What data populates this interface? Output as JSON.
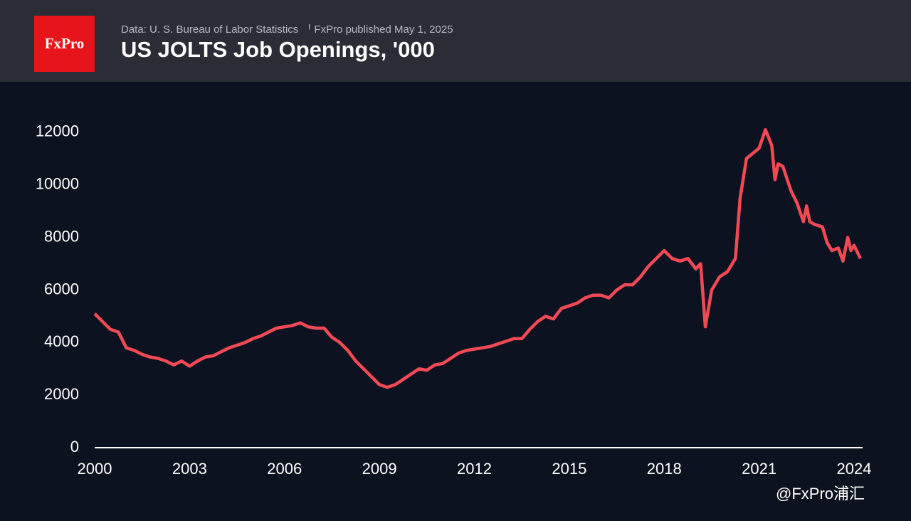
{
  "logo": "FxPro",
  "watermark": "@FxPro浦汇",
  "chart_data": {
    "type": "line",
    "title": "US JOLTS Job Openings, '000",
    "subtitle": "Data: U. S. Bureau of Labor Statistics  ᅵ FxPro published May 1, 2025",
    "xlim": [
      2000,
      2024.27
    ],
    "xticks": [
      2000,
      2003,
      2006,
      2009,
      2012,
      2015,
      2018,
      2021,
      2024
    ],
    "ylim": [
      0,
      13000
    ],
    "yticks": [
      0,
      2000,
      4000,
      6000,
      8000,
      10000,
      12000
    ],
    "grid": false,
    "series": [
      {
        "name": "Job Openings",
        "color": "#f24a55",
        "x": [
          2000,
          2000.25,
          2000.5,
          2000.75,
          2001,
          2001.25,
          2001.5,
          2001.75,
          2002,
          2002.25,
          2002.5,
          2002.75,
          2003,
          2003.25,
          2003.5,
          2003.75,
          2004,
          2004.25,
          2004.5,
          2004.75,
          2005,
          2005.25,
          2005.5,
          2005.75,
          2006,
          2006.25,
          2006.5,
          2006.75,
          2007,
          2007.25,
          2007.5,
          2007.75,
          2008,
          2008.25,
          2008.5,
          2008.75,
          2009,
          2009.25,
          2009.5,
          2009.75,
          2010,
          2010.25,
          2010.5,
          2010.75,
          2011,
          2011.25,
          2011.5,
          2011.75,
          2012,
          2012.25,
          2012.5,
          2012.75,
          2013,
          2013.25,
          2013.5,
          2013.75,
          2014,
          2014.25,
          2014.5,
          2014.75,
          2015,
          2015.25,
          2015.5,
          2015.75,
          2016,
          2016.25,
          2016.5,
          2016.75,
          2017,
          2017.25,
          2017.5,
          2017.75,
          2018,
          2018.25,
          2018.5,
          2018.75,
          2019,
          2019.15,
          2019.3,
          2019.5,
          2019.75,
          2020,
          2020.25,
          2020.4,
          2020.6,
          2020.8,
          2021,
          2021.2,
          2021.4,
          2021.5,
          2021.6,
          2021.75,
          2022,
          2022.2,
          2022.4,
          2022.5,
          2022.6,
          2022.75,
          2023,
          2023.15,
          2023.3,
          2023.5,
          2023.65,
          2023.8,
          2023.9,
          2024,
          2024.2
        ],
        "values": [
          5100,
          4800,
          4500,
          4400,
          3800,
          3700,
          3550,
          3450,
          3400,
          3300,
          3150,
          3300,
          3100,
          3300,
          3450,
          3500,
          3650,
          3800,
          3900,
          4000,
          4150,
          4250,
          4400,
          4550,
          4600,
          4650,
          4750,
          4600,
          4550,
          4550,
          4200,
          4000,
          3700,
          3300,
          3000,
          2700,
          2400,
          2300,
          2400,
          2600,
          2800,
          3000,
          2950,
          3150,
          3200,
          3400,
          3600,
          3700,
          3750,
          3800,
          3850,
          3950,
          4050,
          4150,
          4150,
          4500,
          4800,
          5000,
          4900,
          5300,
          5400,
          5500,
          5700,
          5800,
          5800,
          5700,
          6000,
          6200,
          6200,
          6500,
          6900,
          7200,
          7500,
          7200,
          7100,
          7200,
          6800,
          7000,
          4600,
          6000,
          6500,
          6700,
          7200,
          9500,
          11000,
          11200,
          11400,
          12100,
          11500,
          10200,
          10800,
          10700,
          9800,
          9300,
          8600,
          9200,
          8600,
          8500,
          8400,
          7800,
          7500,
          7600,
          7100,
          8000,
          7500,
          7700,
          7200
        ]
      }
    ]
  }
}
